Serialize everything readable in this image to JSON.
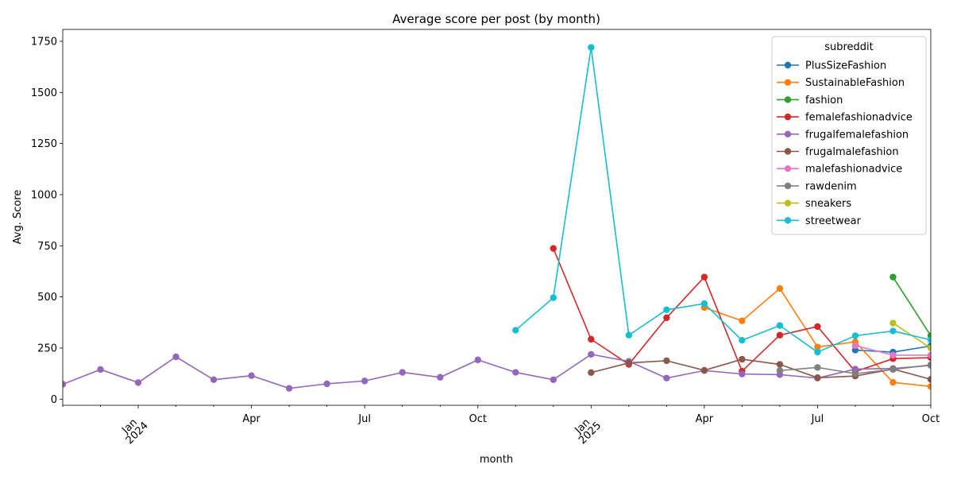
{
  "chart_data": {
    "type": "line",
    "title": "Average score per post (by month)",
    "xlabel": "month",
    "ylabel": "Avg. Score",
    "ylim": [
      -30,
      1808
    ],
    "x_range": [
      "2023-11",
      "2025-10"
    ],
    "yticks": [
      0,
      250,
      500,
      750,
      1000,
      1250,
      1500,
      1750
    ],
    "xticks": [
      {
        "month": "2024-01",
        "line1": "Jan",
        "line2": "2024"
      },
      {
        "month": "2024-04",
        "line1": "Apr",
        "line2": ""
      },
      {
        "month": "2024-07",
        "line1": "Jul",
        "line2": ""
      },
      {
        "month": "2024-10",
        "line1": "Oct",
        "line2": ""
      },
      {
        "month": "2025-01",
        "line1": "Jan",
        "line2": "2025"
      },
      {
        "month": "2025-04",
        "line1": "Apr",
        "line2": ""
      },
      {
        "month": "2025-07",
        "line1": "Jul",
        "line2": ""
      },
      {
        "month": "2025-10",
        "line1": "Oct",
        "line2": ""
      }
    ],
    "legend": {
      "title": "subreddit",
      "placement": "top-right"
    },
    "series": [
      {
        "name": "PlusSizeFashion",
        "color": "#1f77b4",
        "points": [
          [
            "2025-08",
            240
          ],
          [
            "2025-09",
            230
          ],
          [
            "2025-10",
            260
          ]
        ]
      },
      {
        "name": "SustainableFashion",
        "color": "#ff7f0e",
        "points": [
          [
            "2025-04",
            448
          ],
          [
            "2025-05",
            383
          ],
          [
            "2025-06",
            541
          ],
          [
            "2025-07",
            255
          ],
          [
            "2025-08",
            280
          ],
          [
            "2025-09",
            82
          ],
          [
            "2025-10",
            62
          ]
        ]
      },
      {
        "name": "fashion",
        "color": "#2ca02c",
        "points": [
          [
            "2025-09",
            597
          ],
          [
            "2025-10",
            310
          ]
        ]
      },
      {
        "name": "femalefashionadvice",
        "color": "#d62728",
        "points": [
          [
            "2024-12",
            737
          ],
          [
            "2025-01",
            293
          ],
          [
            "2025-02",
            170
          ],
          [
            "2025-03",
            398
          ],
          [
            "2025-04",
            597
          ],
          [
            "2025-05",
            137
          ],
          [
            "2025-06",
            313
          ],
          [
            "2025-07",
            355
          ],
          [
            "2025-08",
            135
          ],
          [
            "2025-09",
            198
          ],
          [
            "2025-10",
            203
          ]
        ]
      },
      {
        "name": "frugalfemalefashion",
        "color": "#9467bd",
        "points": [
          [
            "2023-11",
            73
          ],
          [
            "2023-12",
            145
          ],
          [
            "2024-01",
            81
          ],
          [
            "2024-02",
            207
          ],
          [
            "2024-03",
            95
          ],
          [
            "2024-04",
            115
          ],
          [
            "2024-05",
            53
          ],
          [
            "2024-06",
            75
          ],
          [
            "2024-07",
            89
          ],
          [
            "2024-08",
            131
          ],
          [
            "2024-09",
            107
          ],
          [
            "2024-10",
            192
          ],
          [
            "2024-11",
            131
          ],
          [
            "2024-12",
            95
          ],
          [
            "2025-01",
            219
          ],
          [
            "2025-02",
            185
          ],
          [
            "2025-03",
            103
          ],
          [
            "2025-04",
            140
          ],
          [
            "2025-05",
            123
          ],
          [
            "2025-06",
            120
          ],
          [
            "2025-07",
            103
          ],
          [
            "2025-08",
            147
          ],
          [
            "2025-09",
            150
          ],
          [
            "2025-10",
            165
          ]
        ]
      },
      {
        "name": "frugalmalefashion",
        "color": "#8c564b",
        "points": [
          [
            "2025-01",
            130
          ],
          [
            "2025-02",
            177
          ],
          [
            "2025-03",
            188
          ],
          [
            "2025-04",
            141
          ],
          [
            "2025-05",
            195
          ],
          [
            "2025-06",
            170
          ],
          [
            "2025-07",
            105
          ],
          [
            "2025-08",
            113
          ],
          [
            "2025-09",
            147
          ],
          [
            "2025-10",
            97
          ]
        ]
      },
      {
        "name": "malefashionadvice",
        "color": "#e377c2",
        "points": [
          [
            "2025-08",
            262
          ],
          [
            "2025-09",
            215
          ],
          [
            "2025-10",
            215
          ]
        ]
      },
      {
        "name": "rawdenim",
        "color": "#7f7f7f",
        "points": [
          [
            "2025-06",
            140
          ],
          [
            "2025-07",
            155
          ],
          [
            "2025-08",
            125
          ],
          [
            "2025-09",
            145
          ],
          [
            "2025-10",
            168
          ]
        ]
      },
      {
        "name": "sneakers",
        "color": "#bcbd22",
        "points": [
          [
            "2025-09",
            372
          ],
          [
            "2025-10",
            250
          ]
        ]
      },
      {
        "name": "streetwear",
        "color": "#17becf",
        "points": [
          [
            "2024-11",
            337
          ],
          [
            "2024-12",
            496
          ],
          [
            "2025-01",
            1720
          ],
          [
            "2025-02",
            313
          ],
          [
            "2025-03",
            437
          ],
          [
            "2025-04",
            467
          ],
          [
            "2025-05",
            288
          ],
          [
            "2025-06",
            360
          ],
          [
            "2025-07",
            230
          ],
          [
            "2025-08",
            310
          ],
          [
            "2025-09",
            333
          ],
          [
            "2025-10",
            290
          ]
        ]
      }
    ]
  }
}
